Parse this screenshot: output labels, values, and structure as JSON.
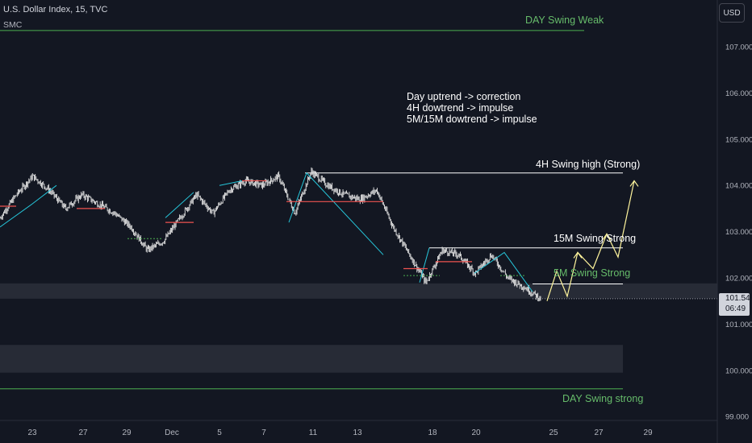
{
  "header": {
    "symbol_line": "U.S. Dollar Index, 15, TVC",
    "indicator": "SMC"
  },
  "currency_button": "USD",
  "last_price": {
    "value": "101.549",
    "countdown": "06:49"
  },
  "annotation_lines": [
    "Day uptrend -> correction",
    "4H dowtrend -> impulse",
    "5M/15M dowtrend -> impulse"
  ],
  "level_labels": {
    "day_swing_weak": "DAY Swing Weak",
    "day_swing_strong": "DAY Swing strong",
    "h4_swing_high": "4H Swing high (Strong)",
    "m15_swing_strong": "15M Swing Strong",
    "m5_swing_strong": "5M Swing Strong"
  },
  "colors": {
    "background": "#131722",
    "candle": "#e6e6e6",
    "green_level": "#4caf50",
    "green_text": "#66bb6a",
    "red_level": "#ef5350",
    "teal_line": "#26c6da",
    "projection": "#fff59d",
    "zone": "#2a2e39"
  },
  "chart_data": {
    "type": "line",
    "title": "U.S. Dollar Index, 15, TVC",
    "y_axis": {
      "ticks": [
        107,
        106,
        105,
        104,
        103,
        102,
        101,
        100,
        99
      ],
      "tick_labels": [
        "107.000",
        "106.000",
        "105.000",
        "104.000",
        "103.000",
        "102.000",
        "101.000",
        "100.000",
        "99.000"
      ],
      "range": [
        98.85,
        107.75
      ]
    },
    "x_axis": {
      "tick_labels": [
        "23",
        "27",
        "29",
        "Dec",
        "5",
        "7",
        "11",
        "13",
        "18",
        "20",
        "25",
        "27",
        "29"
      ]
    },
    "levels": [
      {
        "name": "DAY Swing Weak",
        "price": 107.35
      },
      {
        "name": "4H Swing high (Strong)",
        "price": 104.27
      },
      {
        "name": "15M Swing Strong",
        "price": 102.65
      },
      {
        "name": "5M Swing Strong",
        "price": 101.87
      },
      {
        "name": "DAY Swing strong",
        "price": 99.6
      }
    ],
    "zones": [
      {
        "from": 101.55,
        "to": 101.88
      },
      {
        "from": 99.95,
        "to": 100.55
      }
    ],
    "price_path": [
      [
        "22",
        103.3
      ],
      [
        "22.5",
        103.8
      ],
      [
        "23",
        104.2
      ],
      [
        "23.5",
        103.9
      ],
      [
        "24",
        103.5
      ],
      [
        "25",
        103.8
      ],
      [
        "26",
        103.6
      ],
      [
        "27",
        103.4
      ],
      [
        "28",
        103.1
      ],
      [
        "29",
        102.6
      ],
      [
        "30",
        102.8
      ],
      [
        "Dec",
        103.3
      ],
      [
        "2",
        103.8
      ],
      [
        "4",
        103.4
      ],
      [
        "5",
        103.9
      ],
      [
        "6",
        104.1
      ],
      [
        "7",
        104.0
      ],
      [
        "8",
        104.2
      ],
      [
        "9",
        103.4
      ],
      [
        "10",
        104.3
      ],
      [
        "11",
        104.0
      ],
      [
        "12",
        103.8
      ],
      [
        "13",
        103.7
      ],
      [
        "14",
        103.9
      ],
      [
        "15",
        103.1
      ],
      [
        "16",
        102.5
      ],
      [
        "17",
        101.9
      ],
      [
        "18",
        102.6
      ],
      [
        "19",
        102.5
      ],
      [
        "20",
        102.1
      ],
      [
        "21",
        102.5
      ],
      [
        "22",
        102.0
      ],
      [
        "23",
        101.8
      ],
      [
        "24",
        101.55
      ]
    ],
    "projection_path": [
      101.5,
      102.15,
      101.6,
      102.55,
      102.2,
      102.95,
      102.45,
      104.1
    ]
  }
}
